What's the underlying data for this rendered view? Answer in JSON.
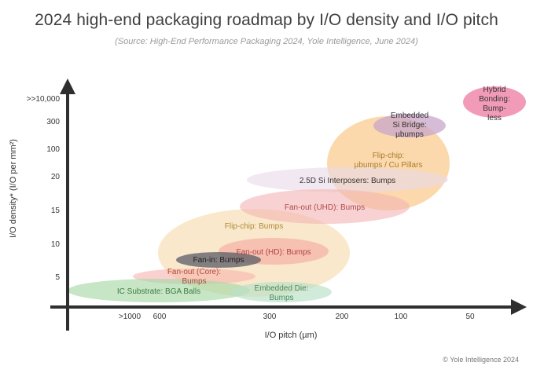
{
  "chart_data": {
    "type": "bubble-roadmap",
    "title": "2024 high-end packaging roadmap by I/O density and I/O pitch",
    "subtitle": "(Source: High-End Performance Packaging 2024, Yole Intelligence, June 2024)",
    "xlabel": "I/O pitch (µm)",
    "ylabel": "I/O density* (I/O per mm²)",
    "x_ticks": [
      ">1000",
      "600",
      "300",
      "200",
      "100",
      "50"
    ],
    "y_ticks": [
      "5",
      "10",
      "15",
      "20",
      "100",
      "300",
      ">>10,000"
    ],
    "bubbles": [
      {
        "name": "Flip-chip: Bumps",
        "lines": [
          "Flip-chip: Bumps"
        ],
        "pitch_range": [
          "600",
          "200"
        ],
        "density_range": [
          "5",
          "15"
        ],
        "color": "#f5d9a8",
        "text_color": "#b08a3a"
      },
      {
        "name": "Flip-chip: µbumps / Cu Pillars",
        "lines": [
          "Flip-chip:",
          "µbumps / Cu Pillars"
        ],
        "pitch_range": [
          "200",
          "100"
        ],
        "density_range": [
          "15",
          "300"
        ],
        "color": "#f9cc90",
        "text_color": "#a87b2e"
      },
      {
        "name": "2.5D Si Interposers: Bumps",
        "lines": [
          "2.5D Si Interposers: Bumps"
        ],
        "pitch_range": [
          "300",
          "100"
        ],
        "density_range": [
          "20",
          "20"
        ],
        "color": "#e9d8e7",
        "text_color": "#333333"
      },
      {
        "name": "Fan-out (UHD): Bumps",
        "lines": [
          "Fan-out (UHD): Bumps"
        ],
        "pitch_range": [
          "600",
          "100"
        ],
        "density_range": [
          "15",
          "20"
        ],
        "color": "#f3b4b4",
        "text_color": "#b04848"
      },
      {
        "name": "Fan-out (HD): Bumps",
        "lines": [
          "Fan-out (HD): Bumps"
        ],
        "pitch_range": [
          "600",
          "200"
        ],
        "density_range": [
          "5",
          "10"
        ],
        "color": "#f4a7a0",
        "text_color": "#b24040"
      },
      {
        "name": "Fan-out (Core): Bumps",
        "lines": [
          "Fan-out (Core):",
          "Bumps"
        ],
        "pitch_range": [
          ">1000",
          "300"
        ],
        "density_range": [
          "5",
          "5"
        ],
        "color": "#f6b3ae",
        "text_color": "#b24a40"
      },
      {
        "name": "Fan-in: Bumps",
        "lines": [
          "Fan-in: Bumps"
        ],
        "pitch_range": [
          "600",
          "300"
        ],
        "density_range": [
          "5",
          "10"
        ],
        "color": "#5b5b66",
        "text_color": "#1f1f1f"
      },
      {
        "name": "IC Substrate: BGA Balls",
        "lines": [
          "IC Substrate: BGA Balls"
        ],
        "pitch_range": [
          ">1000",
          "300"
        ],
        "density_range": [
          "5",
          "5"
        ],
        "color": "#a8d8a8",
        "text_color": "#3e7a3e"
      },
      {
        "name": "Embedded Die: Bumps",
        "lines": [
          "Embedded Die:",
          "Bumps"
        ],
        "pitch_range": [
          "300",
          "200"
        ],
        "density_range": [
          "5",
          "5"
        ],
        "color": "#b9e0c8",
        "text_color": "#4a8a5a"
      },
      {
        "name": "Embedded Si Bridge: µbumps",
        "lines": [
          "Embedded",
          "Si Bridge:",
          "µbumps"
        ],
        "pitch_range": [
          "100",
          "100"
        ],
        "density_range": [
          "300",
          "300"
        ],
        "color": "#c9a6c9",
        "text_color": "#333333"
      },
      {
        "name": "Hybrid Bonding: Bump-less",
        "lines": [
          "Hybrid",
          "Bonding:",
          "Bump-",
          "less"
        ],
        "pitch_range": [
          "50",
          "50"
        ],
        "density_range": [
          ">>10,000",
          ">>10,000"
        ],
        "color": "#f08aac",
        "text_color": "#333333"
      }
    ],
    "copyright": "© Yole Intelligence 2024"
  }
}
